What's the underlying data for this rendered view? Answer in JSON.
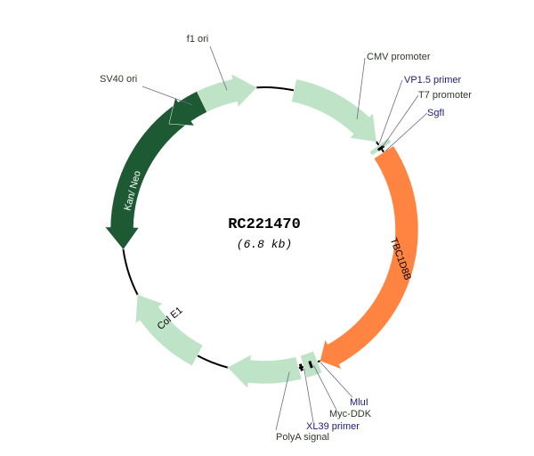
{
  "plasmid": {
    "name": "RC221470",
    "size": "(6.8 kb)"
  },
  "colors": {
    "feature_light": "#bfe3c6",
    "insert": "#ff8442",
    "resistance": "#1d5a34",
    "label_dark": "#2b3a2b",
    "label_site": "#1c1c78",
    "backbone": "#000000"
  },
  "features": [
    {
      "key": "f1",
      "label": "f1 ori"
    },
    {
      "key": "cmv",
      "label": "CMV promoter"
    },
    {
      "key": "vp15",
      "label": "VP1.5 primer"
    },
    {
      "key": "t7",
      "label": "T7 promoter"
    },
    {
      "key": "sgfi",
      "label": "SgfI"
    },
    {
      "key": "insert",
      "label": "TBC1D8B"
    },
    {
      "key": "mlui",
      "label": "MluI"
    },
    {
      "key": "mycddk",
      "label": "Myc-DDK"
    },
    {
      "key": "xl39",
      "label": "XL39 primer"
    },
    {
      "key": "polya",
      "label": "PolyA signal"
    },
    {
      "key": "cole1",
      "label": "Col E1"
    },
    {
      "key": "kanneo",
      "label": "Kan/ Neo"
    },
    {
      "key": "sv40",
      "label": "SV40 ori"
    }
  ]
}
